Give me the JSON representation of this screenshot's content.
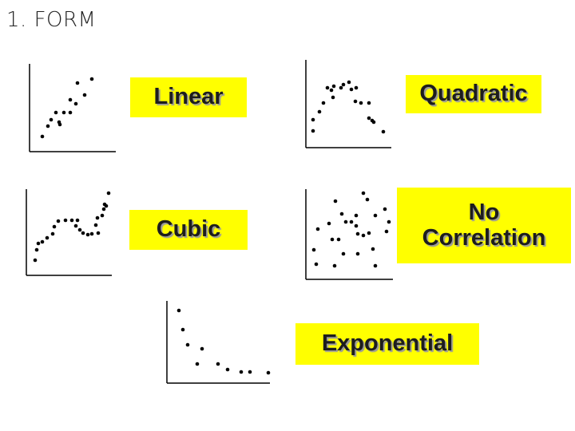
{
  "header": {
    "title": "1. FORM"
  },
  "items": [
    {
      "label": "Linear"
    },
    {
      "label": "Quadratic"
    },
    {
      "label": "Cubic"
    },
    {
      "label": "No Correlation"
    },
    {
      "label": "Exponential"
    }
  ]
}
